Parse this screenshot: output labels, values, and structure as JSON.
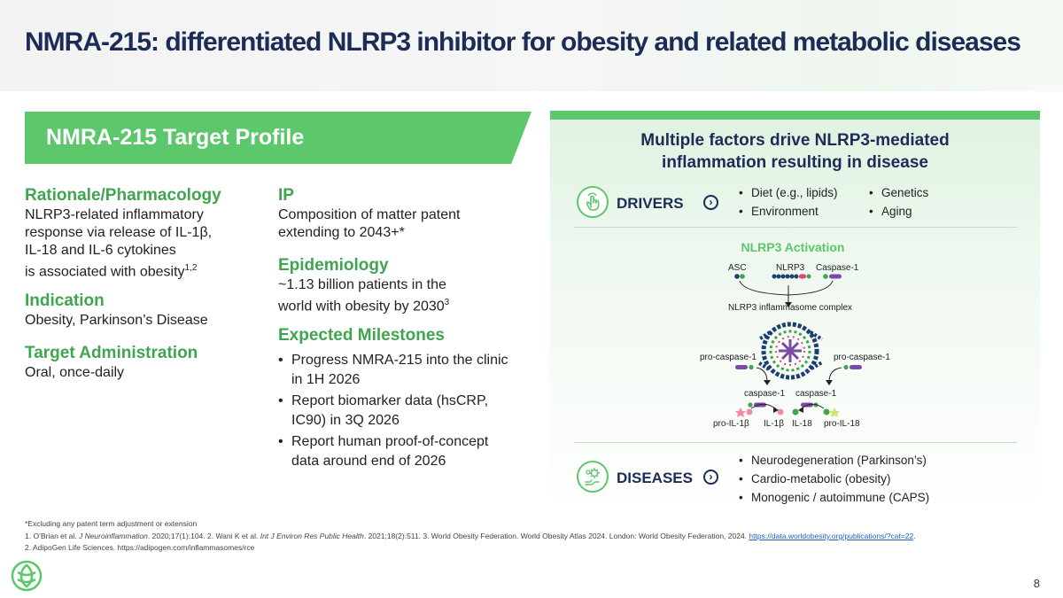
{
  "title": "NMRA-215: differentiated NLRP3 inhibitor for obesity and related metabolic diseases",
  "profile": {
    "header": "NMRA-215 Target Profile",
    "rationale": {
      "heading": "Rationale/Pharmacology",
      "lines": [
        "NLRP3-related inflammatory",
        "response via release of IL-1β,",
        "IL-18 and IL-6 cytokines",
        "is associated with obesity"
      ],
      "sup": "1,2"
    },
    "indication": {
      "heading": "Indication",
      "text": "Obesity, Parkinson’s Disease"
    },
    "administration": {
      "heading": "Target Administration",
      "text": "Oral, once-daily"
    },
    "ip": {
      "heading": "IP",
      "lines": [
        "Composition of matter patent",
        "extending to 2043+*"
      ]
    },
    "epidemiology": {
      "heading": "Epidemiology",
      "lines": [
        "~1.13 billion patients in the",
        "world with obesity by 2030"
      ],
      "sup": "3"
    },
    "milestones": {
      "heading": "Expected Milestones",
      "items": [
        "Progress NMRA-215 into the clinic in 1H 2026",
        "Report biomarker data (hsCRP, IC90) in 3Q 2026",
        "Report human proof-of-concept data around end of 2026"
      ]
    }
  },
  "right": {
    "heading_line1": "Multiple factors drive NLRP3-mediated",
    "heading_line2": "inflammation resulting in disease",
    "drivers": {
      "label": "DRIVERS",
      "icon": "hand-pointer-icon",
      "col1": [
        "Diet (e.g., lipids)",
        "Environment"
      ],
      "col2": [
        "Genetics",
        "Aging"
      ]
    },
    "activation": {
      "title": "NLRP3 Activation",
      "asc": "ASC",
      "nlrp3": "NLRP3",
      "caspase_top": "Caspase-1",
      "complex": "NLRP3 inflammasome complex",
      "pro_caspase_left": "pro-caspase-1",
      "pro_caspase_right": "pro-caspase-1",
      "caspase_left": "caspase-1",
      "caspase_right": "caspase-1",
      "pro_il1b": "pro-IL-1β",
      "il1b": "IL-1β",
      "il18": "IL-18",
      "pro_il18": "pro-IL-18"
    },
    "diseases": {
      "label": "DISEASES",
      "icon": "virus-hand-icon",
      "items": [
        "Neurodegeneration (Parkinson’s)",
        "Cardio-metabolic (obesity)",
        "Monogenic / autoimmune (CAPS)"
      ]
    }
  },
  "footnotes": {
    "line1": "*Excluding any patent term adjustment or extension",
    "line2a": "1. O’Brian et al. ",
    "line2b": "J Neuroinflammation",
    "line2c": ". 2020;17(1):104. 2. Wani K et al. ",
    "line2d": "Int J Environ Res Public Health",
    "line2e": ". 2021;18(2):511. 3. World Obesity Federation. World Obesity Atlas 2024. London: World Obesity Federation, 2024. ",
    "link": "https://data.worldobesity.org/publications/?cat=22",
    "line2f": ".",
    "line3": "2. AdipoGen Life Sciences. https://adipogen.com/inflammasomes/rce"
  },
  "page_number": "8",
  "colors": {
    "green": "#5cc76b",
    "green_text": "#3fa54f",
    "navy": "#1c2c57"
  }
}
